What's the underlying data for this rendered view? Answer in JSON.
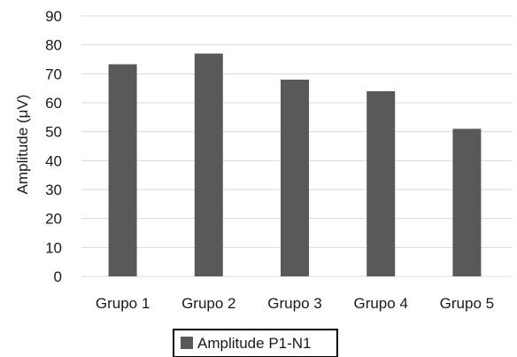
{
  "chart_data": {
    "type": "bar",
    "categories": [
      "Grupo 1",
      "Grupo 2",
      "Grupo 3",
      "Grupo 4",
      "Grupo 5"
    ],
    "series": [
      {
        "name": "Amplitude P1-N1",
        "values": [
          73.3,
          77,
          68,
          64,
          51
        ],
        "color": "#595959"
      }
    ],
    "title": "",
    "xlabel": "",
    "ylabel": "Amplitude (μV)",
    "ylim": [
      0,
      90
    ],
    "yticks": [
      "0",
      "10",
      "20",
      "30",
      "40",
      "50",
      "60",
      "70",
      "80",
      "90"
    ],
    "grid": true,
    "legend_position": "bottom"
  },
  "colors": {
    "bar": "#595959",
    "grid": "#d9d9d9",
    "text": "#1a1a1a"
  }
}
